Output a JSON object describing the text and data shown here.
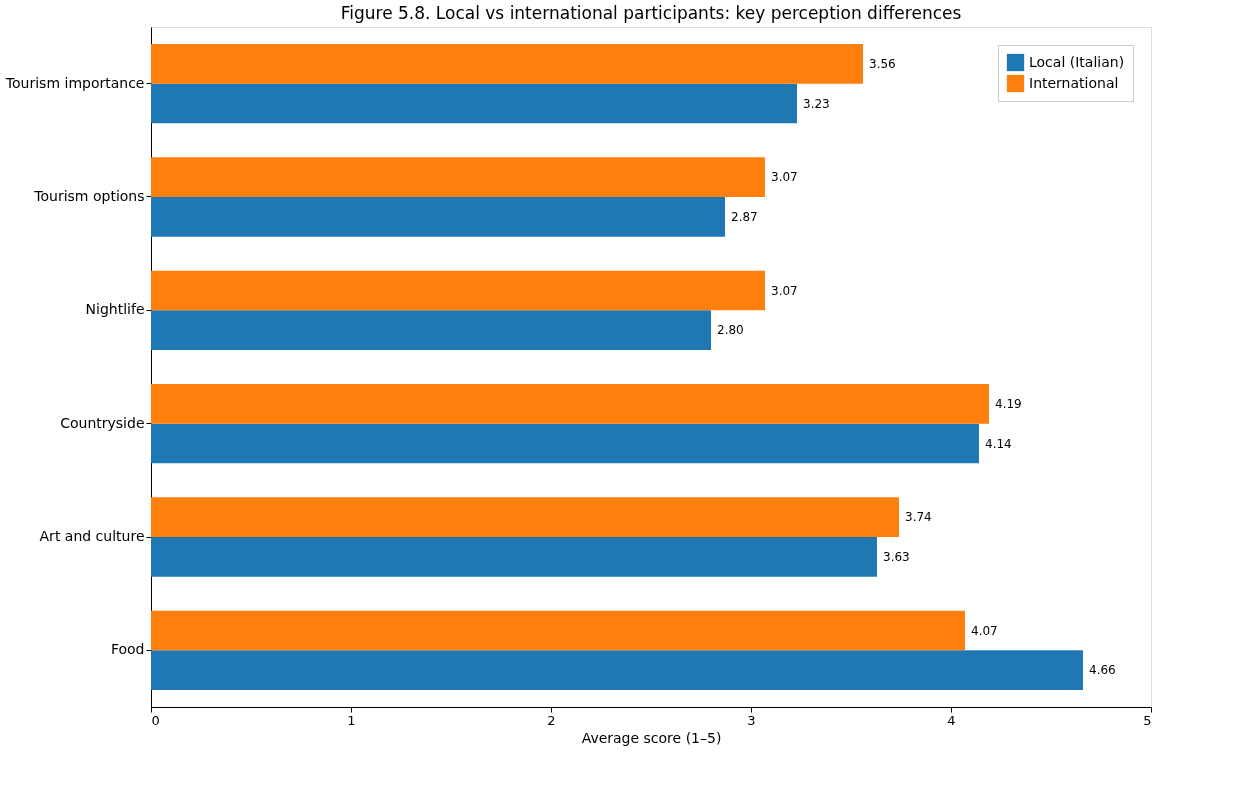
{
  "chart_data": {
    "type": "bar",
    "orientation": "horizontal",
    "title": "Figure 5.8. Local vs international participants: key perception differences",
    "xlabel": "Average score (1–5)",
    "categories": [
      "Tourism importance",
      "Tourism options",
      "Nightlife",
      "Countryside",
      "Art and culture",
      "Food"
    ],
    "series": [
      {
        "name": "Local (Italian)",
        "color": "#1f77b4",
        "values": [
          3.23,
          2.87,
          2.8,
          4.14,
          3.63,
          4.66
        ],
        "value_labels": [
          "3.23",
          "2.87",
          "2.80",
          "4.14",
          "3.63",
          "4.66"
        ]
      },
      {
        "name": "International",
        "color": "#ff7f0e",
        "values": [
          3.56,
          3.07,
          3.07,
          4.19,
          3.74,
          4.07
        ],
        "value_labels": [
          "3.56",
          "3.07",
          "3.07",
          "4.19",
          "3.74",
          "4.07"
        ]
      }
    ],
    "xlim": [
      0,
      5
    ],
    "xticks": [
      0,
      1,
      2,
      3,
      4,
      5
    ],
    "grid": false,
    "legend": "top right"
  }
}
